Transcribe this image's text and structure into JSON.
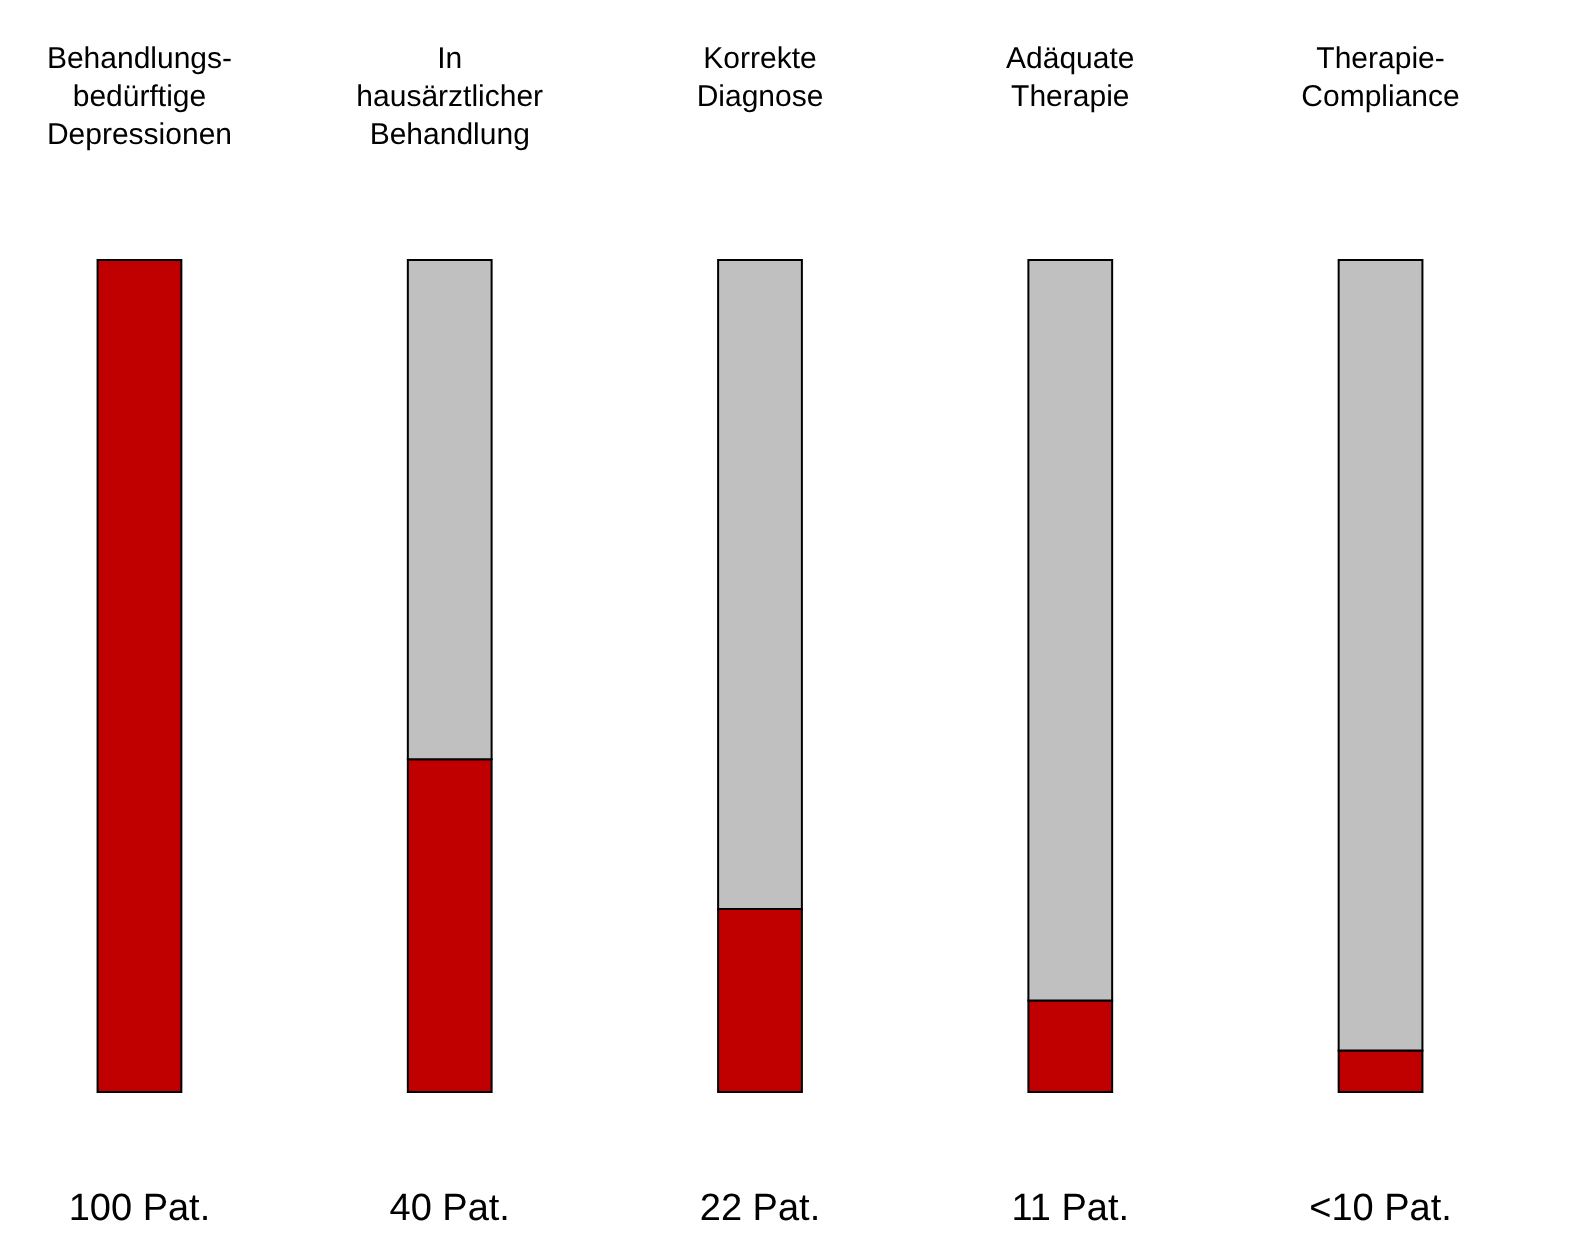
{
  "chart_data": {
    "type": "bar",
    "stacked": true,
    "categories": [
      "Behandlungs-\nbedürftige\nDepressionen",
      "In\nhausärztlicher\nBehandlung",
      "Korrekte\nDiagnose",
      "Adäquate\nTherapie",
      "Therapie-\nCompliance"
    ],
    "series": [
      {
        "color": "#c00000",
        "values": [
          100,
          40,
          22,
          11,
          5
        ],
        "value_labels": [
          "100 Pat.",
          "40 Pat.",
          "22 Pat.",
          "11 Pat.",
          "<10 Pat."
        ]
      },
      {
        "color": "#c0c0c0",
        "values": [
          null,
          60,
          78,
          89,
          95
        ]
      }
    ]
  }
}
